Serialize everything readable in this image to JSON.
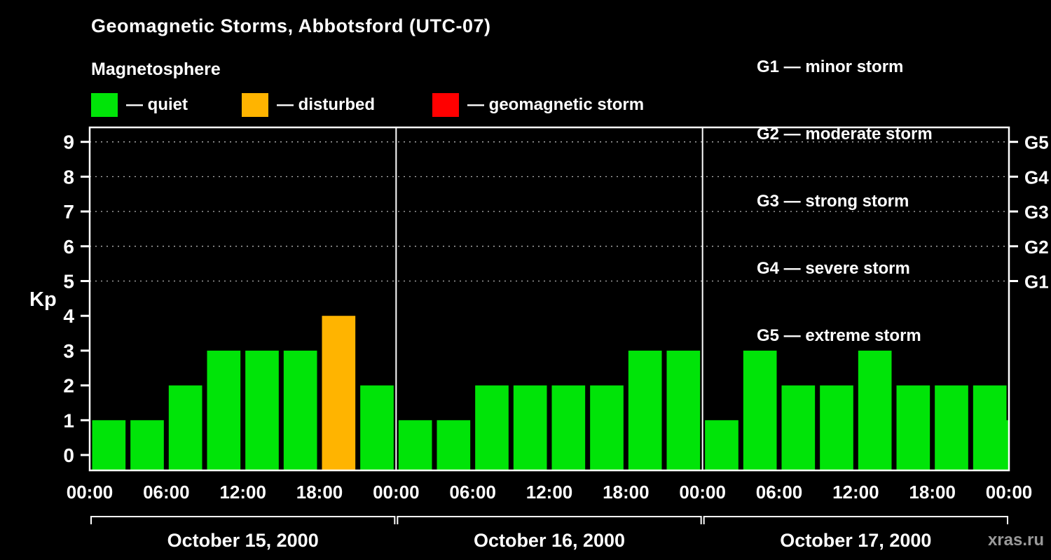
{
  "title": "Geomagnetic Storms, Abbotsford (UTC-07)",
  "subtitle": "Magnetosphere",
  "legend": [
    {
      "name": "quiet",
      "label": "— quiet",
      "color": "#00e408"
    },
    {
      "name": "disturbed",
      "label": "— disturbed",
      "color": "#ffb400"
    },
    {
      "name": "storm",
      "label": "— geomagnetic storm",
      "color": "#ff0000"
    }
  ],
  "storm_scale": [
    "G1 — minor storm",
    "G2 — moderate storm",
    "G3 — strong storm",
    "G4 — severe storm",
    "G5 — extreme storm"
  ],
  "kp_axis_label": "Kp",
  "watermark": "xras.ru",
  "chart_data": {
    "type": "bar",
    "title": "Geomagnetic Storms, Abbotsford (UTC-07)",
    "ylabel": "Kp",
    "ylim": [
      0,
      9.5
    ],
    "yticks": [
      0,
      1,
      2,
      3,
      4,
      5,
      6,
      7,
      8,
      9
    ],
    "grid_levels": [
      5,
      6,
      7,
      8,
      9
    ],
    "right_labels": [
      {
        "kp": 5,
        "label": "G1"
      },
      {
        "kp": 6,
        "label": "G2"
      },
      {
        "kp": 7,
        "label": "G3"
      },
      {
        "kp": 8,
        "label": "G4"
      },
      {
        "kp": 9,
        "label": "G5"
      }
    ],
    "x_tick_labels": [
      "00:00",
      "06:00",
      "12:00",
      "18:00"
    ],
    "final_x_tick_label": "00:00",
    "interval_hours": 3,
    "days": [
      {
        "date": "October 15, 2000",
        "values": [
          1,
          1,
          2,
          3,
          3,
          3,
          4,
          2
        ]
      },
      {
        "date": "October 16, 2000",
        "values": [
          1,
          1,
          2,
          2,
          2,
          2,
          3,
          3
        ]
      },
      {
        "date": "October 17, 2000",
        "values": [
          1,
          3,
          2,
          2,
          3,
          2,
          2,
          2
        ]
      }
    ],
    "trailing_value": 1,
    "colors": {
      "quiet": "#00e408",
      "disturbed": "#ffb400",
      "storm": "#ff0000"
    },
    "thresholds": {
      "disturbed_min": 4,
      "storm_min": 5
    },
    "legend_position": "top",
    "grid": "dotted-horizontal-at-storm-levels"
  }
}
